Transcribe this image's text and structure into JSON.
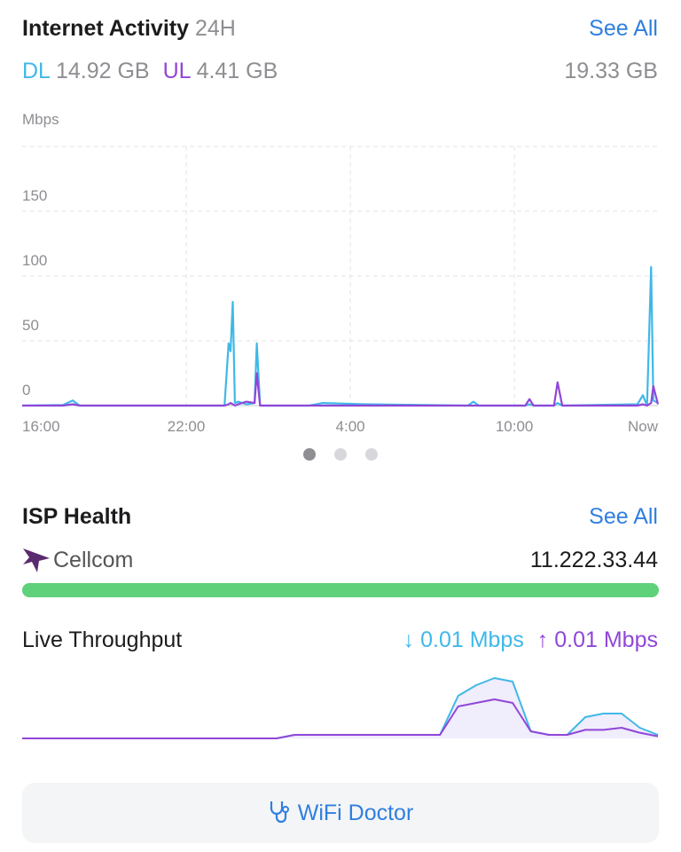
{
  "header": {
    "title": "Internet Activity",
    "period": "24H",
    "link": "See All"
  },
  "totals": {
    "dl_label": "DL",
    "dl_value": "14.92 GB",
    "ul_label": "UL",
    "ul_value": "4.41 GB",
    "total": "19.33 GB"
  },
  "chart_data": [
    {
      "type": "line",
      "y_label": "Mbps",
      "x": [
        0,
        1.5,
        1.85,
        2.1,
        7.4,
        7.55,
        7.62,
        7.7,
        7.78,
        7.9,
        8.2,
        8.5,
        8.58,
        8.7,
        9.0,
        10.5,
        11.0,
        12.5,
        16.3,
        16.5,
        16.7,
        18.4,
        18.55,
        18.7,
        19.45,
        19.58,
        19.75,
        22.5,
        22.7,
        22.85,
        23.0,
        23.08,
        23.25
      ],
      "series": [
        {
          "name": "DL",
          "color": "#40b8e8",
          "values": [
            0,
            0.5,
            4,
            0,
            0,
            48,
            42,
            80,
            2,
            3,
            1,
            2,
            48,
            0,
            0,
            0,
            2,
            1,
            0,
            3,
            0,
            0,
            1,
            0,
            0,
            2,
            0,
            1,
            8,
            0,
            107,
            4,
            2
          ]
        },
        {
          "name": "UL",
          "color": "#9146d8",
          "values": [
            0,
            0,
            1,
            0,
            0,
            1,
            2,
            1,
            0,
            1,
            3,
            2,
            25,
            0,
            0,
            0,
            0,
            0,
            0,
            0,
            0,
            0,
            5,
            0,
            0,
            18,
            0,
            0,
            1,
            0,
            2,
            15,
            1
          ]
        }
      ],
      "xlim": [
        0,
        23.25
      ],
      "xticks": [
        {
          "value": 0,
          "label": "16:00"
        },
        {
          "value": 6,
          "label": "22:00"
        },
        {
          "value": 12,
          "label": "4:00"
        },
        {
          "value": 18,
          "label": "10:00"
        },
        {
          "value": 23.25,
          "label": "Now"
        }
      ],
      "ylim": [
        0,
        200
      ],
      "yticks": [
        0,
        50,
        100,
        150
      ],
      "grid": true
    },
    {
      "type": "area",
      "series": [
        {
          "name": "DL",
          "color": "#40b8e8",
          "values": [
            0,
            0,
            0,
            0,
            0,
            0,
            0,
            0,
            0,
            0,
            0,
            0,
            0,
            0,
            0,
            0.5,
            0.5,
            0.5,
            0.5,
            0.5,
            0.5,
            0.5,
            0.5,
            0.5,
            6,
            7.5,
            8.5,
            8,
            1,
            0.5,
            0.5,
            3,
            3.5,
            3.5,
            1.5,
            0.5
          ]
        },
        {
          "name": "UL",
          "color": "#9146d8",
          "values": [
            0,
            0,
            0,
            0,
            0,
            0,
            0,
            0,
            0,
            0,
            0,
            0,
            0,
            0,
            0,
            0.5,
            0.5,
            0.5,
            0.5,
            0.5,
            0.5,
            0.5,
            0.5,
            0.5,
            4.5,
            5,
            5.5,
            5,
            1,
            0.5,
            0.5,
            1.2,
            1.2,
            1.5,
            0.8,
            0.3
          ]
        }
      ],
      "ylim": [
        0,
        10
      ]
    }
  ],
  "isp": {
    "title": "ISP Health",
    "link": "See All",
    "provider": "Cellcom",
    "ip": "11.222.33.44"
  },
  "throughput": {
    "label": "Live Throughput",
    "dl": "0.01 Mbps",
    "ul": "0.01 Mbps"
  },
  "button": {
    "label": "WiFi Doctor"
  }
}
